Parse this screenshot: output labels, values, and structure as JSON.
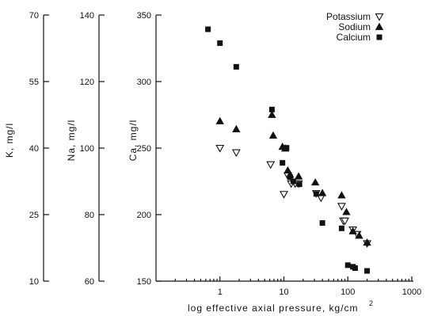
{
  "chart_data": {
    "type": "scatter",
    "title": "",
    "xlabel": "log effective axial pressure,  kg/cm",
    "xlabel_superscript": "2",
    "xscale": "log",
    "xlim": [
      0.1,
      1000
    ],
    "x_ticks": [
      "1",
      "10",
      "100",
      "1000"
    ],
    "grid": false,
    "legend_position": "top-right",
    "y_axes": [
      {
        "id": "K",
        "label": "K,   mg/l",
        "lim": [
          10,
          70
        ],
        "ticks": [
          "10",
          "25",
          "40",
          "55",
          "70"
        ]
      },
      {
        "id": "Na",
        "label": "Na,   mg/l",
        "lim": [
          60,
          140
        ],
        "ticks": [
          "60",
          "80",
          "100",
          "120",
          "140"
        ]
      },
      {
        "id": "Ca",
        "label": "Ca,   mg/l",
        "lim": [
          150,
          350
        ],
        "ticks": [
          "150",
          "200",
          "250",
          "300",
          "350"
        ]
      }
    ],
    "series": [
      {
        "name": "Potassium",
        "axis": "K",
        "marker": "triangle-down-open",
        "x": [
          1.0,
          1.8,
          6.2,
          10.0,
          11.5,
          13.0,
          15.0,
          17.0,
          32.0,
          38.0,
          80.0,
          85.0,
          90.0,
          120.0,
          140.0,
          200.0
        ],
        "y": [
          40.0,
          39.0,
          36.3,
          29.6,
          33.8,
          32.0,
          32.0,
          32.0,
          29.8,
          28.8,
          26.9,
          23.6,
          23.6,
          21.6,
          20.6,
          18.5
        ]
      },
      {
        "name": "Sodium",
        "axis": "Na",
        "marker": "triangle-up-filled",
        "x": [
          1.0,
          1.8,
          6.5,
          6.8,
          9.5,
          10.5,
          11.5,
          12.5,
          17.0,
          31.0,
          40.0,
          80.0,
          95.0,
          120.0,
          150.0,
          200.0
        ],
        "y": [
          108.1,
          105.7,
          110.0,
          103.8,
          100.4,
          99.9,
          93.3,
          92.0,
          91.5,
          89.7,
          86.5,
          85.8,
          80.8,
          75.0,
          73.7,
          71.6
        ]
      },
      {
        "name": "Calcium",
        "axis": "Ca",
        "marker": "square-filled",
        "x": [
          0.65,
          1.0,
          1.8,
          6.5,
          9.5,
          11.0,
          12.5,
          14.0,
          17.5,
          32.0,
          40.0,
          80.0,
          100.0,
          120.0,
          130.0,
          200.0
        ],
        "y": [
          339.3,
          328.9,
          311.1,
          279.0,
          238.9,
          250.2,
          228.2,
          225.0,
          222.8,
          215.6,
          193.7,
          189.7,
          162.0,
          160.8,
          159.8,
          157.7
        ]
      }
    ]
  }
}
